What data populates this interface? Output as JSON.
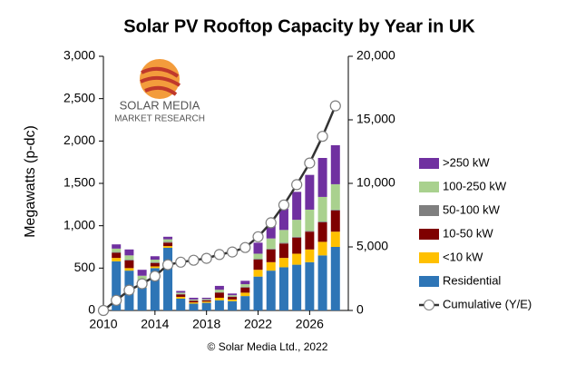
{
  "chart_data": {
    "type": "stacked-bar-line",
    "title": "Solar PV Rooftop Capacity by Year in UK",
    "ylabel": "Megawatts (p-dc)",
    "source": "© Solar Media Ltd., 2022",
    "logo": {
      "line1": "SOLAR MEDIA",
      "line2": "MARKET RESEARCH"
    },
    "x": [
      2011,
      2012,
      2013,
      2014,
      2015,
      2016,
      2017,
      2018,
      2019,
      2020,
      2021,
      2022,
      2023,
      2024,
      2025,
      2026,
      2027,
      2028
    ],
    "xlim": [
      2010,
      2029
    ],
    "xticks": [
      2010,
      2014,
      2018,
      2022,
      2026
    ],
    "ylim": [
      0,
      3000
    ],
    "yticks": [
      0,
      500,
      {
        "value": 1000,
        "label": "1,000"
      },
      {
        "value": 1500,
        "label": "1,500"
      },
      {
        "value": 2000,
        "label": "2,000"
      },
      {
        "value": 2500,
        "label": "2,500"
      },
      {
        "value": 3000,
        "label": "3,000"
      }
    ],
    "y2lim": [
      0,
      20000
    ],
    "y2ticks": [
      0,
      {
        "value": 5000,
        "label": "5,000"
      },
      {
        "value": 10000,
        "label": "10,000"
      },
      {
        "value": 15000,
        "label": "15,000"
      },
      {
        "value": 20000,
        "label": "20,000"
      }
    ],
    "series": [
      {
        "name": "Residential",
        "color": "#2e75b6",
        "values": [
          580,
          470,
          270,
          500,
          740,
          140,
          80,
          90,
          120,
          110,
          170,
          400,
          470,
          510,
          540,
          570,
          650,
          750
        ]
      },
      {
        "name": "<10 kW",
        "color": "#ffc000",
        "values": [
          40,
          30,
          20,
          20,
          20,
          20,
          15,
          15,
          30,
          20,
          40,
          80,
          100,
          110,
          130,
          150,
          160,
          180
        ]
      },
      {
        "name": "10-50 kW",
        "color": "#7f0000",
        "values": [
          60,
          90,
          60,
          40,
          40,
          30,
          20,
          15,
          60,
          30,
          60,
          120,
          150,
          170,
          190,
          210,
          230,
          250
        ]
      },
      {
        "name": "50-100 kW",
        "color": "#7f7f7f",
        "values": [
          10,
          10,
          10,
          10,
          10,
          5,
          5,
          5,
          5,
          5,
          10,
          10,
          10,
          10,
          10,
          10,
          10,
          10
        ]
      },
      {
        "name": "100-250 kW",
        "color": "#a9d18e",
        "values": [
          40,
          50,
          50,
          30,
          30,
          15,
          10,
          10,
          30,
          15,
          30,
          60,
          120,
          150,
          200,
          250,
          290,
          300
        ]
      },
      {
        "name": ">250 kW",
        "color": "#7030a0",
        "values": [
          50,
          70,
          70,
          40,
          30,
          20,
          20,
          15,
          45,
          20,
          40,
          130,
          200,
          250,
          330,
          410,
          460,
          460
        ]
      },
      {
        "name": "Cumulative (Y/E)",
        "color": "#333333",
        "axis": "y2",
        "x": [
          2010,
          2011,
          2012,
          2013,
          2014,
          2015,
          2016,
          2017,
          2018,
          2019,
          2020,
          2021,
          2022,
          2023,
          2024,
          2025,
          2026,
          2027,
          2028
        ],
        "values": [
          0,
          800,
          1600,
          2100,
          2700,
          3600,
          3800,
          3950,
          4100,
          4400,
          4600,
          4950,
          5800,
          6900,
          8300,
          9900,
          11600,
          13700,
          16100
        ]
      }
    ]
  }
}
